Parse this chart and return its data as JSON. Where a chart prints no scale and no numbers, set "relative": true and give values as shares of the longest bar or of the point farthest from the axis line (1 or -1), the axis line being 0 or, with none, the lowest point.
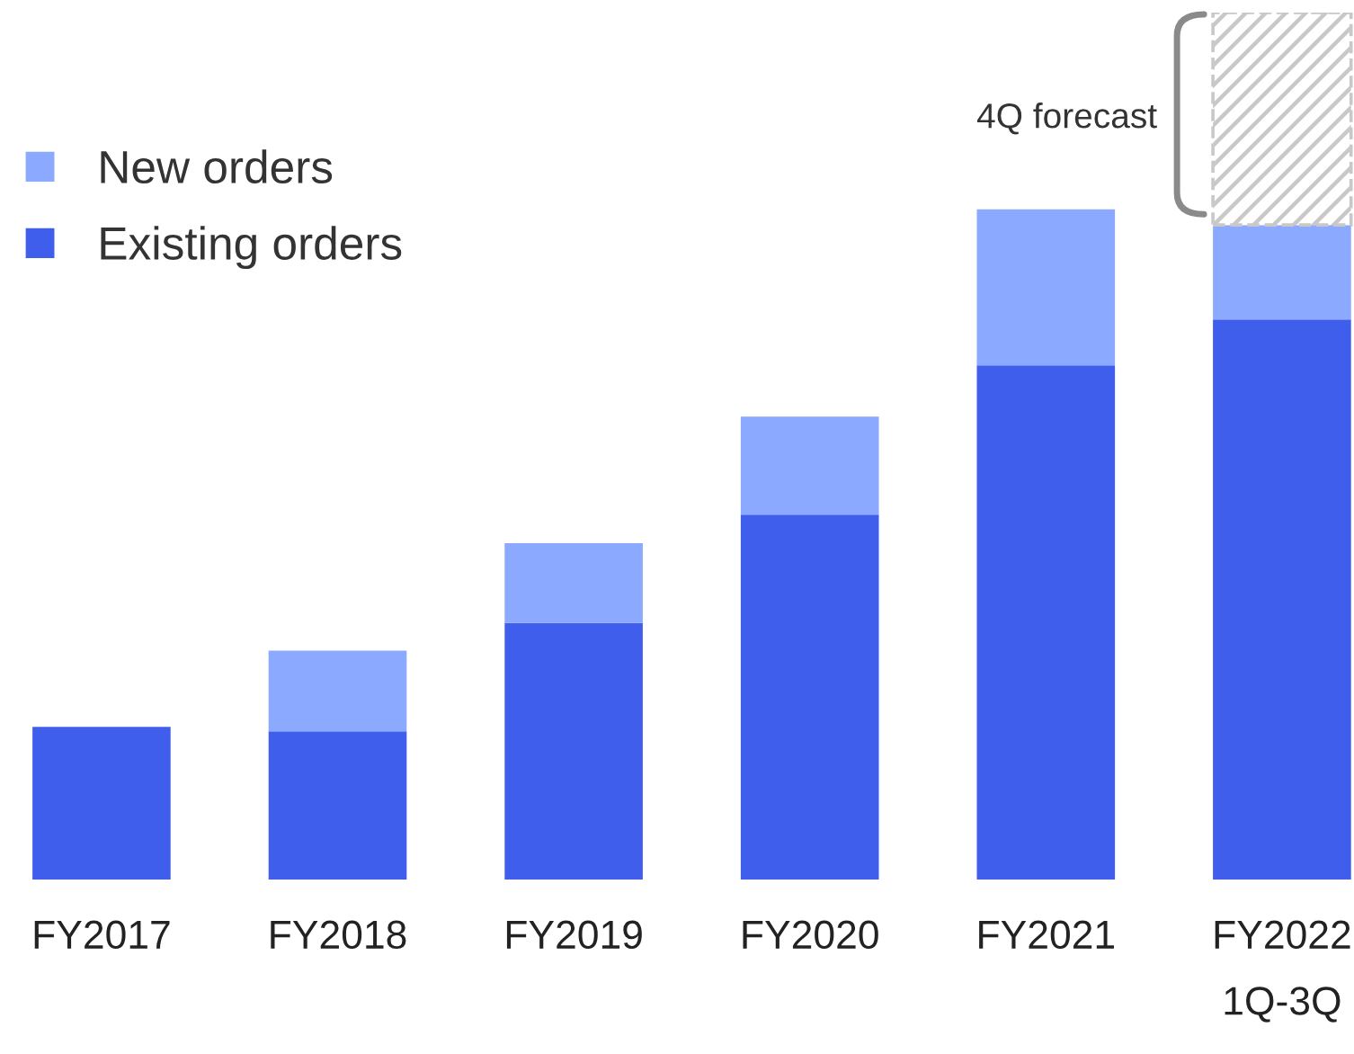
{
  "chart_data": {
    "type": "bar",
    "stacked": true,
    "relative": true,
    "legend": "top left",
    "categories": [
      "FY2017",
      "FY2018",
      "FY2019",
      "FY2020",
      "FY2021",
      "FY2022\n1Q-3Q"
    ],
    "series": [
      {
        "name": "Existing orders",
        "color": "#3f5eec",
        "values": [
          0.176,
          0.171,
          0.296,
          0.421,
          0.593,
          0.646
        ]
      },
      {
        "name": "New orders",
        "color": "#8ba9fe",
        "values": [
          null,
          0.093,
          0.092,
          0.113,
          0.18,
          0.109
        ]
      },
      {
        "color": "#c8c8c8",
        "line_style": "dashed",
        "values": [
          null,
          null,
          null,
          null,
          null,
          0.245
        ]
      }
    ],
    "annotations": [
      "4Q forecast"
    ]
  }
}
